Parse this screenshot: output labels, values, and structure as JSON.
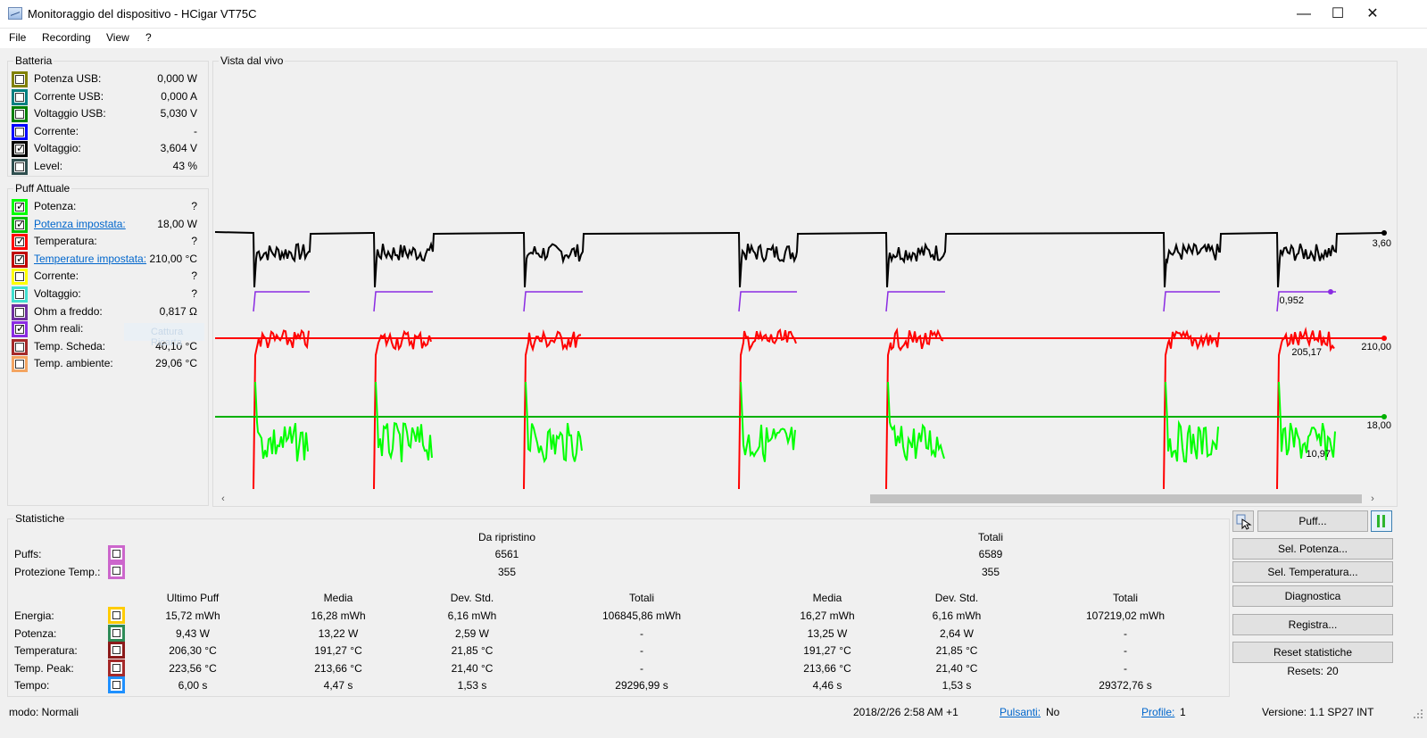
{
  "window": {
    "title": "Monitoraggio del dispositivo - HCigar VT75C",
    "minimize": "—",
    "maximize": "☐",
    "close": "✕"
  },
  "menu": [
    "File",
    "Recording",
    "View",
    "?"
  ],
  "battery": {
    "title": "Batteria",
    "rows": [
      {
        "label": "Potenza USB:",
        "value": "0,000 W",
        "color": "#808000",
        "checked": false,
        "link": false
      },
      {
        "label": "Corrente USB:",
        "value": "0,000 A",
        "color": "#008080",
        "checked": false,
        "link": false
      },
      {
        "label": "Voltaggio USB:",
        "value": "5,030 V",
        "color": "#008000",
        "checked": false,
        "link": false
      },
      {
        "label": "Corrente:",
        "value": "-",
        "color": "#0000ff",
        "checked": false,
        "link": false
      },
      {
        "label": "Voltaggio:",
        "value": "3,604 V",
        "color": "#000000",
        "checked": true,
        "link": false
      },
      {
        "label": "Level:",
        "value": "43 %",
        "color": "#2f4f4f",
        "checked": false,
        "link": false
      }
    ]
  },
  "puff": {
    "title": "Puff Attuale",
    "rows": [
      {
        "label": "Potenza:",
        "value": "?",
        "color": "#00ff00",
        "checked": true,
        "link": false
      },
      {
        "label": "Potenza impostata:",
        "value": "18,00 W",
        "color": "#00c000",
        "checked": true,
        "link": true
      },
      {
        "label": "Temperatura:",
        "value": "?",
        "color": "#ff0000",
        "checked": true,
        "link": false
      },
      {
        "label": "Temperature impostata:",
        "value": "210,00 °C",
        "color": "#c00000",
        "checked": true,
        "link": true
      },
      {
        "label": "Corrente:",
        "value": "?",
        "color": "#ffff00",
        "checked": false,
        "link": false
      },
      {
        "label": "Voltaggio:",
        "value": "?",
        "color": "#40e0d0",
        "checked": false,
        "link": false
      },
      {
        "label": "Ohm a freddo:",
        "value": "0,817 Ω",
        "color": "#7030a0",
        "checked": false,
        "link": false
      },
      {
        "label": "Ohm reali:",
        "value": "?",
        "color": "#8a2be2",
        "checked": true,
        "link": false
      },
      {
        "label": "Temp. Scheda:",
        "value": "40,10 °C",
        "color": "#a52a2a",
        "checked": false,
        "link": false
      },
      {
        "label": "Temp. ambiente:",
        "value": "29,06 °C",
        "color": "#f4a460",
        "checked": false,
        "link": false
      }
    ],
    "ghost_button": "Cattura Ricarta"
  },
  "live": {
    "title": "Vista dal vivo",
    "labels": {
      "voltage": "3,60",
      "ohm": "0,952",
      "temp_set": "210,00",
      "temp_now": "205,17",
      "power_set": "18,00",
      "power_now": "10,97"
    },
    "colors": {
      "voltage": "#000000",
      "ohm": "#8a2be2",
      "temperature": "#ff0000",
      "power": "#00ff00",
      "power_set": "#00b000"
    }
  },
  "chart_data": {
    "type": "line",
    "title": "Vista dal vivo",
    "series": [
      {
        "name": "Voltaggio",
        "last": 3.6,
        "puffs": 8
      },
      {
        "name": "Ohm reali",
        "last": 0.952
      },
      {
        "name": "Temperatura",
        "set": 210.0,
        "last": 205.17
      },
      {
        "name": "Potenza",
        "set": 18.0,
        "last": 10.97
      }
    ],
    "puff_windows": [
      [
        43,
        106
      ],
      [
        178,
        244
      ],
      [
        346,
        412
      ],
      [
        587,
        652
      ],
      [
        752,
        818
      ],
      [
        1063,
        1126
      ],
      [
        1190,
        1256
      ]
    ]
  },
  "stats": {
    "title": "Statistiche",
    "header_reset": "Da ripristino",
    "header_total": "Totali",
    "puffs_label": "Puffs:",
    "puffs_reset": "6561",
    "puffs_total": "6589",
    "prot_label": "Protezione Temp.:",
    "prot_reset": "355",
    "prot_total": "355",
    "colheads": [
      "Ultimo Puff",
      "Media",
      "Dev. Std.",
      "Totali",
      "Media",
      "Dev. Std.",
      "Totali"
    ],
    "rows": [
      {
        "label": "Energia:",
        "color": "#ffcc00",
        "vals": [
          "15,72 mWh",
          "16,28 mWh",
          "6,16 mWh",
          "106845,86 mWh",
          "16,27 mWh",
          "6,16 mWh",
          "107219,02 mWh"
        ]
      },
      {
        "label": "Potenza:",
        "color": "#2e8b57",
        "vals": [
          "9,43 W",
          "13,22 W",
          "2,59 W",
          "-",
          "13,25 W",
          "2,64 W",
          "-"
        ]
      },
      {
        "label": "Temperatura:",
        "color": "#8b1a1a",
        "vals": [
          "206,30 °C",
          "191,27 °C",
          "21,85 °C",
          "-",
          "191,27 °C",
          "21,85 °C",
          "-"
        ]
      },
      {
        "label": "Temp. Peak:",
        "color": "#a52a2a",
        "vals": [
          "223,56 °C",
          "213,66 °C",
          "21,40 °C",
          "-",
          "213,66 °C",
          "21,40 °C",
          "-"
        ]
      },
      {
        "label": "Tempo:",
        "color": "#1e90ff",
        "vals": [
          "6,00 s",
          "4,47 s",
          "1,53 s",
          "29296,99 s",
          "4,46 s",
          "1,53 s",
          "29372,76 s"
        ]
      }
    ],
    "puffs_color": "#cc66cc",
    "prot_color": "#cc66cc"
  },
  "buttons": {
    "puff": "Puff...",
    "sel_power": "Sel. Potenza...",
    "sel_temp": "Sel. Temperatura...",
    "diagnostics": "Diagnostica",
    "record": "Registra...",
    "reset": "Reset statistiche",
    "resets": "Resets: 20"
  },
  "status": {
    "mode": "modo: Normali",
    "datetime": "2018/2/26 2:58 AM +1",
    "pulsanti_label": "Pulsanti:",
    "pulsanti_value": "No",
    "profile_label": "Profile:",
    "profile_value": "1",
    "version": "Versione: 1.1 SP27 INT"
  }
}
